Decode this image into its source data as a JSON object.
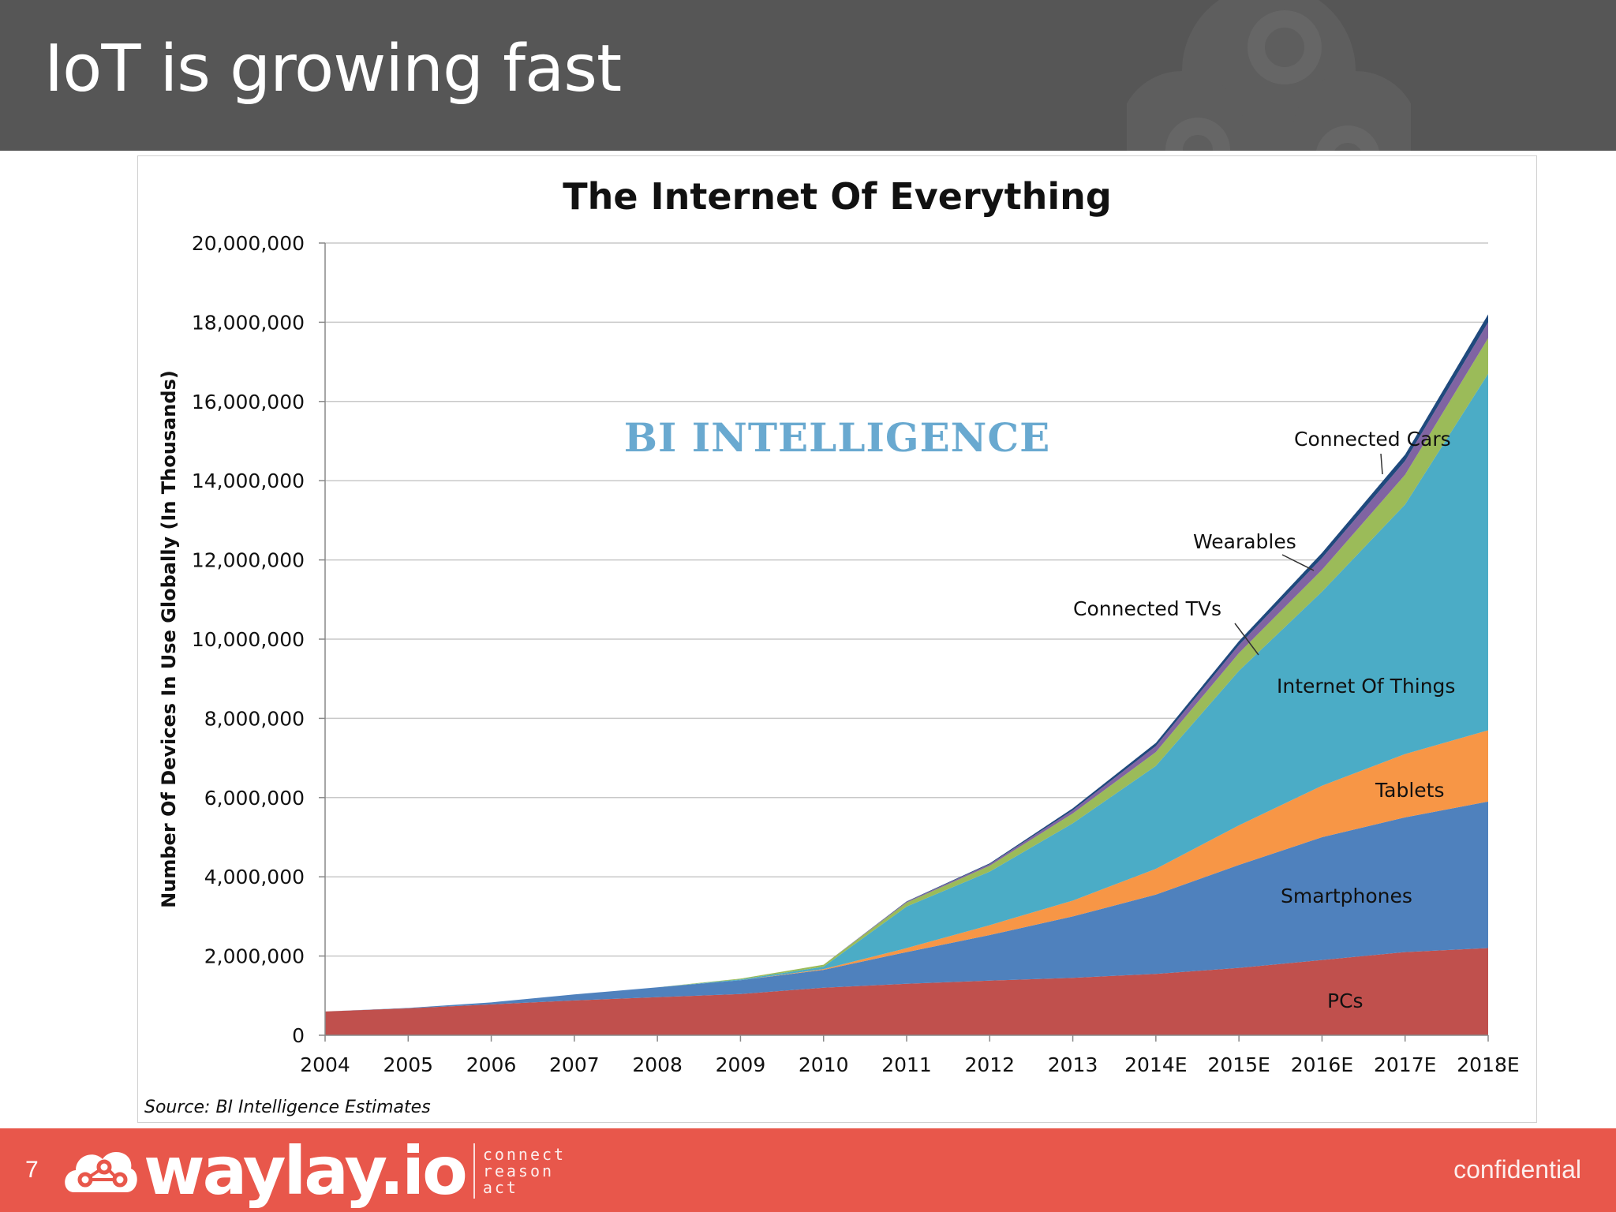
{
  "slide": {
    "title": "IoT is growing fast",
    "page_number": "7",
    "footer_brand": "waylay.io",
    "footer_tagline": [
      "connect",
      "reason",
      "act"
    ],
    "footer_label": "confidential"
  },
  "watermark": "BI INTELLIGENCE",
  "source": "Source: BI Intelligence Estimates",
  "colors": {
    "header_bg": "#565656",
    "footer_bg": "#e8574b",
    "PCs": "#c0504d",
    "Smartphones": "#4f81bd",
    "Tablets": "#f79646",
    "Internet Of Things": "#4bacc6",
    "Connected TVs": "#9bbb59",
    "Wearables": "#8064a2",
    "Connected Cars": "#1f497d"
  },
  "chart_data": {
    "type": "area",
    "stacked": true,
    "title": "The Internet Of Everything",
    "ylabel": "Number Of Devices In Use Globally (In Thousands)",
    "xlabel": "",
    "x": [
      "2004",
      "2005",
      "2006",
      "2007",
      "2008",
      "2009",
      "2010",
      "2011",
      "2012",
      "2013",
      "2014E",
      "2015E",
      "2016E",
      "2017E",
      "2018E"
    ],
    "ylim": [
      0,
      20000000
    ],
    "yticks": [
      "0",
      "2,000,000",
      "4,000,000",
      "6,000,000",
      "8,000,000",
      "10,000,000",
      "12,000,000",
      "14,000,000",
      "16,000,000",
      "18,000,000",
      "20,000,000"
    ],
    "grid": true,
    "series": [
      {
        "name": "PCs",
        "values": [
          600000,
          680000,
          780000,
          880000,
          960000,
          1040000,
          1200000,
          1300000,
          1380000,
          1450000,
          1550000,
          1700000,
          1900000,
          2100000,
          2200000
        ]
      },
      {
        "name": "Smartphones",
        "values": [
          0,
          10000,
          50000,
          150000,
          250000,
          350000,
          450000,
          800000,
          1150000,
          1550000,
          2000000,
          2600000,
          3100000,
          3400000,
          3700000
        ]
      },
      {
        "name": "Tablets",
        "values": [
          0,
          0,
          0,
          0,
          0,
          0,
          20000,
          100000,
          250000,
          400000,
          650000,
          1000000,
          1300000,
          1600000,
          1800000
        ]
      },
      {
        "name": "Internet Of Things",
        "values": [
          0,
          0,
          0,
          0,
          0,
          20000,
          60000,
          1050000,
          1350000,
          1950000,
          2600000,
          3900000,
          4900000,
          6300000,
          9000000
        ]
      },
      {
        "name": "Connected TVs",
        "values": [
          0,
          0,
          0,
          0,
          0,
          20000,
          50000,
          100000,
          150000,
          250000,
          350000,
          450000,
          550000,
          750000,
          900000
        ]
      },
      {
        "name": "Wearables",
        "values": [
          0,
          0,
          0,
          0,
          0,
          0,
          0,
          20000,
          40000,
          80000,
          150000,
          200000,
          300000,
          350000,
          400000
        ]
      },
      {
        "name": "Connected Cars",
        "values": [
          0,
          0,
          0,
          0,
          0,
          0,
          0,
          10000,
          20000,
          50000,
          80000,
          100000,
          130000,
          160000,
          200000
        ]
      }
    ],
    "annotations": [
      "Connected Cars",
      "Wearables",
      "Connected TVs",
      "Internet Of Things",
      "Tablets",
      "Smartphones",
      "PCs"
    ]
  }
}
